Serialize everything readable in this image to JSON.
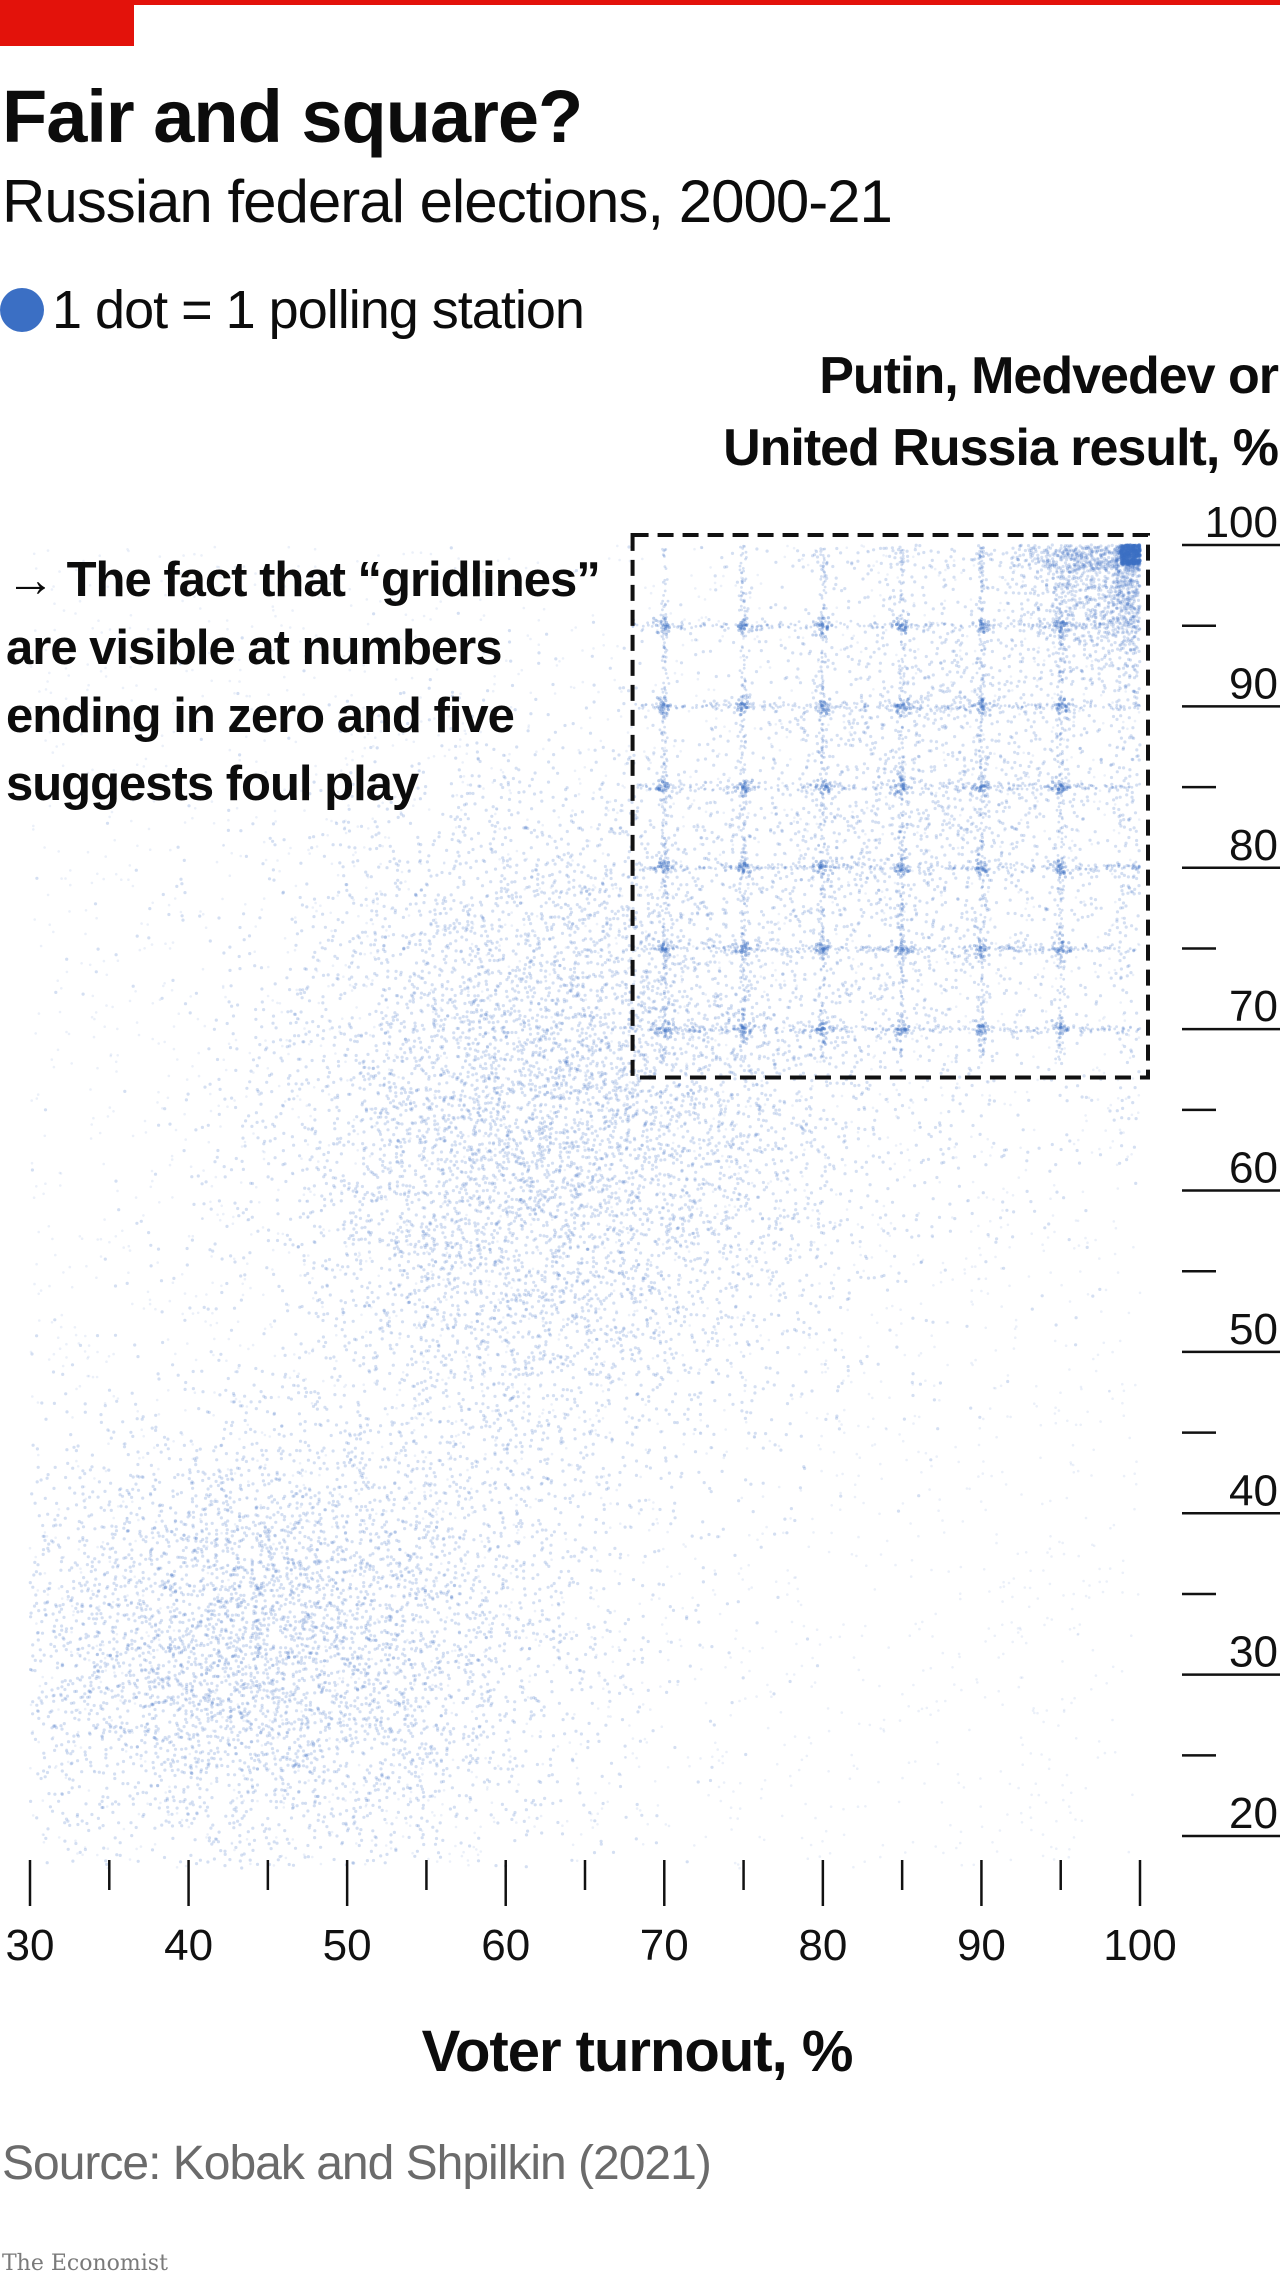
{
  "colors": {
    "accent": "#e3120b",
    "dots": "#3b6fc4",
    "ink": "#0c0c0c",
    "muted": "#6b6b6b"
  },
  "header": {
    "title": "Fair and square?",
    "subtitle": "Russian federal elections, 2000-21"
  },
  "legend": {
    "label": "1 dot = 1 polling station"
  },
  "annotation": {
    "lines": [
      "→ The fact that “gridlines”",
      "are visible at numbers",
      "ending in zero and five",
      "suggests foul play"
    ]
  },
  "footer": {
    "source": "Source: Kobak and Shpilkin (2021)",
    "brand": "The Economist"
  },
  "chart_data": {
    "type": "scatter",
    "title": "Fair and square?",
    "subtitle": "Russian federal elections, 2000-21",
    "xlabel": "Voter turnout, %",
    "ylabel_lines": [
      "Putin, Medvedev or",
      "United Russia result, %"
    ],
    "xlim": [
      30,
      100
    ],
    "ylim": [
      20,
      100
    ],
    "x_major_ticks": [
      30,
      40,
      50,
      60,
      70,
      80,
      90,
      100
    ],
    "x_minor_ticks": [
      35,
      45,
      55,
      65,
      75,
      85,
      95
    ],
    "y_major_ticks": [
      20,
      30,
      40,
      50,
      60,
      70,
      80,
      90,
      100
    ],
    "y_minor_ticks": [
      25,
      35,
      45,
      55,
      65,
      75,
      85,
      95
    ],
    "y_axis_position": "right",
    "grid": false,
    "legend_placement": "top-left",
    "point_color": "#3b6fc4",
    "clusters": [
      {
        "x_center": 45,
        "y_center": 32,
        "x_spread": 10,
        "y_spread": 7,
        "weight": 0.32
      },
      {
        "x_center": 62,
        "y_center": 63,
        "x_spread": 9,
        "y_spread": 11,
        "weight": 0.36
      },
      {
        "x_center": 72,
        "y_center": 70,
        "x_spread": 13,
        "y_spread": 9,
        "weight": 0.12
      },
      {
        "x_center": 88,
        "y_center": 86,
        "x_spread": 8,
        "y_spread": 8,
        "weight": 0.12
      },
      {
        "x_center": 98,
        "y_center": 98,
        "x_spread": 3,
        "y_spread": 3,
        "weight": 0.08
      }
    ],
    "integer_peaks": {
      "x_values": [
        70,
        75,
        80,
        85,
        90,
        95
      ],
      "y_values": [
        70,
        75,
        80,
        85,
        90,
        95
      ],
      "corner": [
        100,
        100
      ]
    },
    "highlight_box": {
      "x": [
        68,
        100
      ],
      "y": [
        67,
        100
      ],
      "style": "dashed"
    }
  }
}
